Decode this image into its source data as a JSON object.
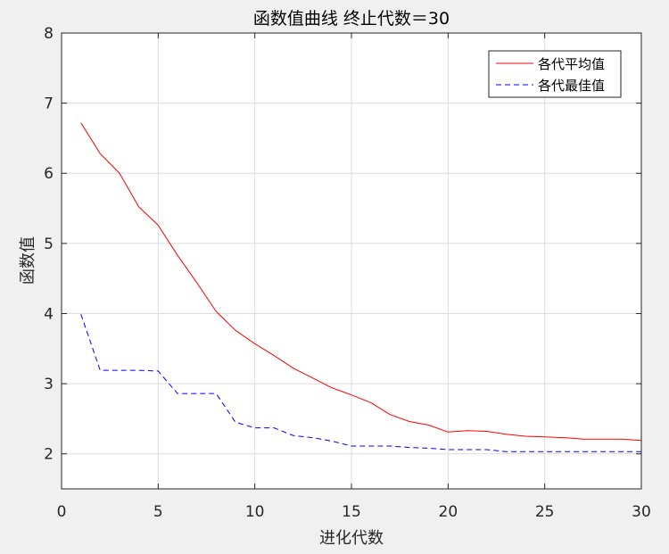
{
  "chart_data": {
    "type": "line",
    "title": "函数值曲线  终止代数＝30",
    "xlabel": "进化代数",
    "ylabel": "函数值",
    "xlim": [
      0,
      30
    ],
    "ylim": [
      1.5,
      8
    ],
    "xticks": [
      0,
      5,
      10,
      15,
      20,
      25,
      30
    ],
    "yticks": [
      2,
      3,
      4,
      5,
      6,
      7,
      8
    ],
    "xtick_labels": [
      "0",
      "5",
      "10",
      "15",
      "20",
      "25",
      "30"
    ],
    "ytick_labels": [
      "2",
      "3",
      "4",
      "5",
      "6",
      "7",
      "8"
    ],
    "grid": true,
    "legend_position": "top-right",
    "x": [
      1,
      2,
      3,
      4,
      5,
      6,
      7,
      8,
      9,
      10,
      11,
      12,
      13,
      14,
      15,
      16,
      17,
      18,
      19,
      20,
      21,
      22,
      23,
      24,
      25,
      26,
      27,
      28,
      29,
      30
    ],
    "series": [
      {
        "name": "各代平均值",
        "color": "#ff0000",
        "style": "solid",
        "values": [
          6.72,
          6.28,
          6.0,
          5.52,
          5.26,
          4.83,
          4.44,
          4.03,
          3.76,
          3.57,
          3.4,
          3.22,
          3.08,
          2.94,
          2.84,
          2.73,
          2.56,
          2.46,
          2.41,
          2.31,
          2.33,
          2.32,
          2.28,
          2.25,
          2.24,
          2.23,
          2.21,
          2.21,
          2.21,
          2.19
        ]
      },
      {
        "name": "各代最佳值",
        "color": "#0000ff",
        "style": "dashed",
        "values": [
          3.99,
          3.19,
          3.19,
          3.19,
          3.18,
          2.86,
          2.86,
          2.86,
          2.45,
          2.37,
          2.37,
          2.26,
          2.23,
          2.18,
          2.11,
          2.11,
          2.11,
          2.09,
          2.08,
          2.06,
          2.06,
          2.06,
          2.03,
          2.03,
          2.03,
          2.03,
          2.03,
          2.03,
          2.03,
          2.03
        ]
      }
    ]
  }
}
